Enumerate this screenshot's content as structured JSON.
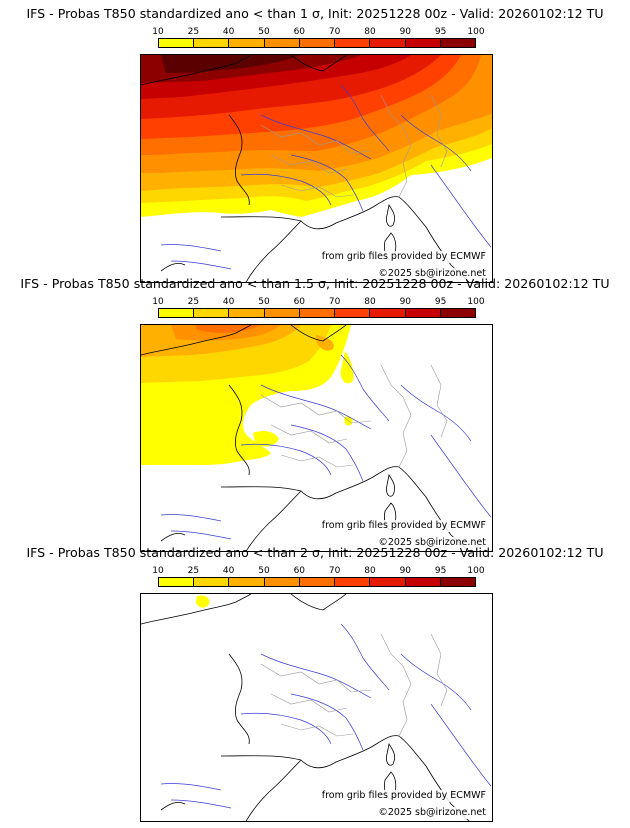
{
  "colorbar": {
    "labels": [
      "10",
      "25",
      "40",
      "50",
      "60",
      "70",
      "80",
      "90",
      "95",
      "100"
    ],
    "colors": [
      "#ffff00",
      "#ffd700",
      "#ffb000",
      "#ff9100",
      "#ff6f00",
      "#ff4000",
      "#e51a00",
      "#c60000",
      "#8c0000",
      "#5a0000"
    ]
  },
  "panels": [
    {
      "title": "IFS - Probas T850  standardized ano < than 1 σ, Init: 20251228 00z - Valid: 20260102:12 TU",
      "credit_source": "from grib files provided by ECMWF",
      "credit_copyright": "©2025 sb@irizone.net"
    },
    {
      "title": "IFS - Probas T850  standardized ano < than 1.5 σ, Init: 20251228 00z - Valid: 20260102:12 TU",
      "credit_source": "from grib files provided by ECMWF",
      "credit_copyright": "©2025 sb@irizone.net"
    },
    {
      "title": "IFS - Probas T850  standardized ano < than 2 σ, Init: 20251228 00z - Valid: 20260102:12 TU",
      "credit_source": "from grib files provided by ECMWF",
      "credit_copyright": "©2025 sb@irizone.net"
    }
  ]
}
